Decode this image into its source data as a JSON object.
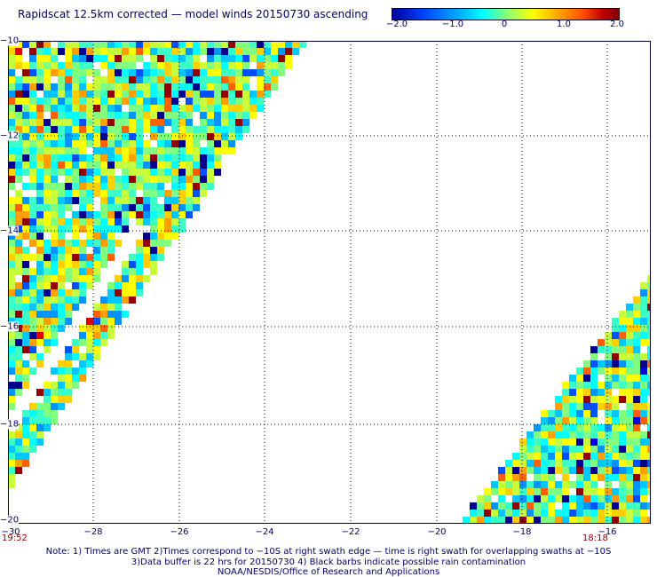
{
  "title": "Rapidscat 12.5km corrected — model winds 20150730 ascending",
  "colorbar": {
    "labels": [
      "−2.0",
      "−1.0",
      "0",
      "1.0",
      "2.0"
    ]
  },
  "axes": {
    "y_labels": [
      "−10",
      "−12",
      "−14",
      "−16",
      "−18",
      "−20"
    ],
    "x_labels": [
      "−28",
      "−26",
      "−24",
      "−22",
      "−20",
      "−18",
      "−16"
    ],
    "corner_x_label": "−30"
  },
  "times": {
    "left": "19:52",
    "right": "18:18"
  },
  "notes": {
    "line1": "Note: 1) Times are GMT 2)Times correspond to −10S at right swath edge — time is right swath for overlapping swaths at −10S",
    "line2": "3)Data buffer is 22 hrs for 20150730 4) Black barbs indicate possible rain contamination",
    "line3": "NOAA/NESDIS/Office of Research and Applications"
  }
}
